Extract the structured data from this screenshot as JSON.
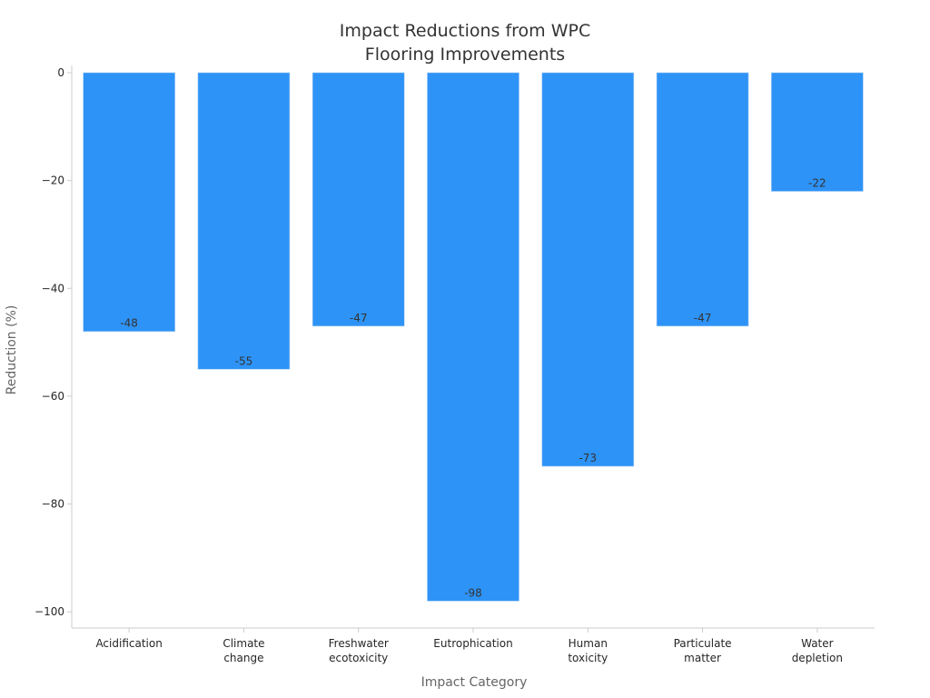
{
  "chart_data": {
    "type": "bar",
    "title_lines": [
      "Impact Reductions from WPC",
      "Flooring Improvements"
    ],
    "xlabel": "Impact Category",
    "ylabel": "Reduction (%)",
    "categories": [
      [
        "Acidification"
      ],
      [
        "Climate",
        "change"
      ],
      [
        "Freshwater",
        "ecotoxicity"
      ],
      [
        "Eutrophication"
      ],
      [
        "Human",
        "toxicity"
      ],
      [
        "Particulate",
        "matter"
      ],
      [
        "Water",
        "depletion"
      ]
    ],
    "values": [
      -48,
      -55,
      -47,
      -98,
      -73,
      -47,
      -22
    ],
    "data_labels": [
      "-48",
      "-55",
      "-47",
      "-98",
      "-73",
      "-47",
      "-22"
    ],
    "ylim": [
      -103,
      0
    ],
    "yticks": [
      0,
      -20,
      -40,
      -60,
      -80,
      -100
    ],
    "ytick_labels": [
      "0",
      "−20",
      "−40",
      "−60",
      "−80",
      "−100"
    ],
    "grid": false,
    "legend": "none",
    "colors": {
      "bar": "#2E93F7",
      "axis": "#cccccc"
    }
  }
}
